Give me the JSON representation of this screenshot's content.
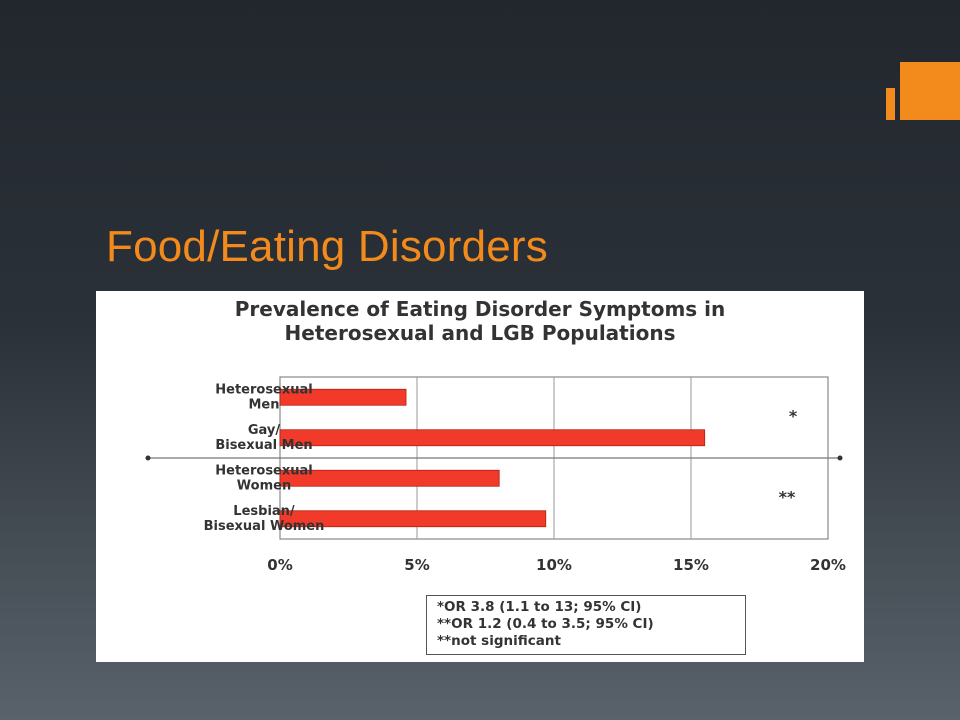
{
  "slide": {
    "title": "Food/Eating Disorders",
    "accent_color": "#f28a1c"
  },
  "chart_data": {
    "type": "bar",
    "orientation": "horizontal",
    "title_line1": "Prevalence of Eating Disorder Symptoms in",
    "title_line2": "Heterosexual and LGB Populations",
    "categories": [
      [
        "Heterosexual",
        "Men"
      ],
      [
        "Gay/",
        "Bisexual Men"
      ],
      [
        "Heterosexual",
        "Women"
      ],
      [
        "Lesbian/",
        "Bisexual Women"
      ]
    ],
    "values": [
      4.6,
      15.5,
      8.0,
      9.7
    ],
    "xlim": [
      0,
      20
    ],
    "x_ticks": [
      0,
      5,
      10,
      15,
      20
    ],
    "x_tick_labels": [
      "0%",
      "5%",
      "10%",
      "15%",
      "20%"
    ],
    "bar_color": "#f23a2a",
    "grid": true,
    "significance_marks": [
      "*",
      "**"
    ],
    "legend_lines": [
      "*OR 3.8 (1.1 to 13; 95% CI)",
      "**OR 1.2 (0.4 to 3.5; 95% CI)",
      "**not significant"
    ]
  }
}
